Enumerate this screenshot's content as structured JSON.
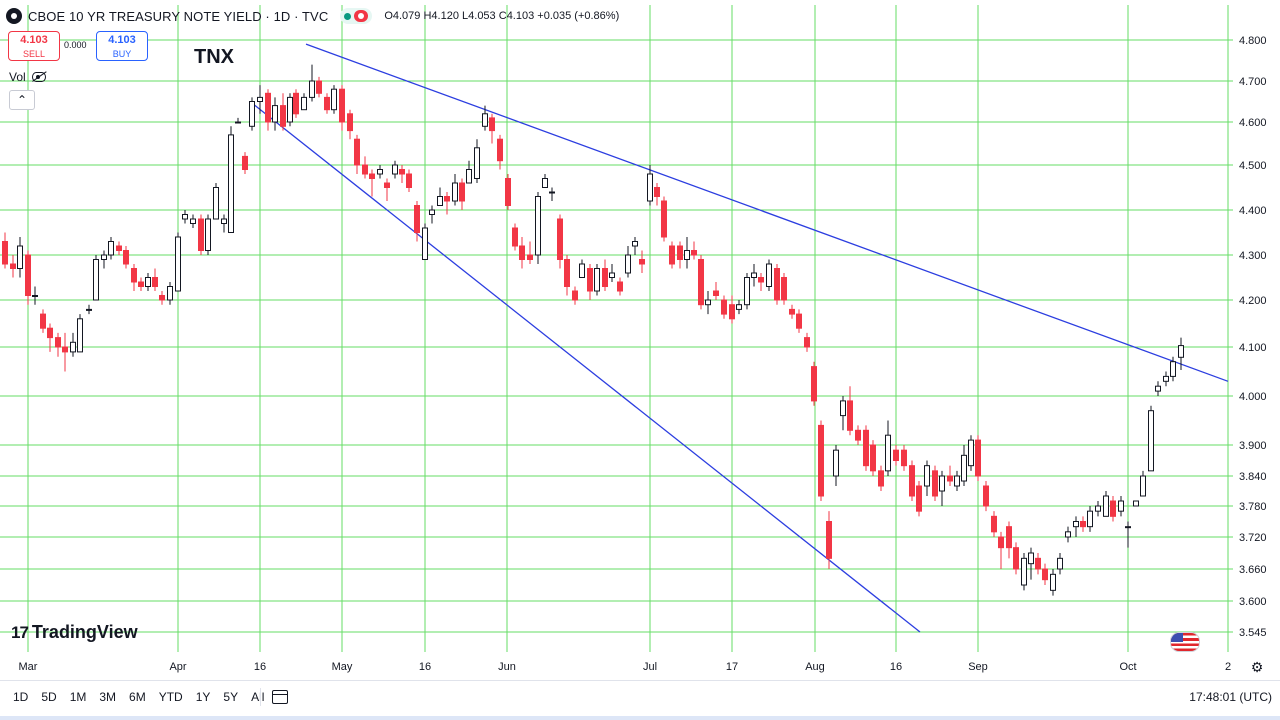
{
  "header": {
    "title": "CBOE 10 YR TREASURY NOTE YIELD · 1D · TVC",
    "ohlc": {
      "o_label": "O",
      "o": "4.079",
      "h_label": "H",
      "h": "4.120",
      "l_label": "L",
      "l": "4.053",
      "c_label": "C",
      "c": "4.103",
      "change": "+0.035 (+0.86%)"
    }
  },
  "trade": {
    "sell_price": "4.103",
    "sell_label": "SELL",
    "spread": "0.000",
    "buy_price": "4.103",
    "buy_label": "BUY"
  },
  "symbol_label": "TNX",
  "vol_label": "Vol",
  "watermark": "TradingView",
  "timeframes": [
    "1D",
    "5D",
    "1M",
    "3M",
    "6M",
    "YTD",
    "1Y",
    "5Y",
    "All"
  ],
  "clock": "17:48:01 (UTC)",
  "colors": {
    "up": "#131722",
    "down": "#f23645",
    "grid": "#66dd66",
    "trendline": "#2c3ee0",
    "sell": "#f23645",
    "buy": "#2962ff"
  },
  "chart_data": {
    "type": "candlestick",
    "y_ticks": [
      "4.800",
      "4.700",
      "4.600",
      "4.500",
      "4.400",
      "4.300",
      "4.200",
      "4.100",
      "4.000",
      "3.900",
      "3.840",
      "3.780",
      "3.720",
      "3.660",
      "3.600",
      "3.545"
    ],
    "x_ticks": [
      "Mar",
      "Apr",
      "16",
      "May",
      "16",
      "Jun",
      "Jul",
      "17",
      "Aug",
      "16",
      "Sep",
      "Oct",
      "2"
    ],
    "last_ohlc": {
      "open": 4.079,
      "high": 4.12,
      "low": 4.053,
      "close": 4.103
    },
    "trendlines": [
      {
        "name": "upper",
        "from": [
          306,
          4.79
        ],
        "to": [
          1228,
          4.03
        ]
      },
      {
        "name": "lower",
        "from": [
          250,
          4.65
        ],
        "to": [
          920,
          3.545
        ]
      }
    ],
    "candles": [
      [
        5,
        4.33,
        4.35,
        4.27,
        4.28
      ],
      [
        13,
        4.28,
        4.3,
        4.25,
        4.27
      ],
      [
        20,
        4.27,
        4.34,
        4.25,
        4.32
      ],
      [
        28,
        4.3,
        4.31,
        4.19,
        4.21
      ],
      [
        35,
        4.21,
        4.23,
        4.19,
        4.21
      ],
      [
        43,
        4.17,
        4.18,
        4.13,
        4.14
      ],
      [
        50,
        4.14,
        4.15,
        4.09,
        4.12
      ],
      [
        58,
        4.12,
        4.13,
        4.08,
        4.1
      ],
      [
        65,
        4.1,
        4.13,
        4.05,
        4.09
      ],
      [
        73,
        4.09,
        4.13,
        4.08,
        4.11
      ],
      [
        80,
        4.09,
        4.17,
        4.09,
        4.16
      ],
      [
        89,
        4.18,
        4.19,
        4.17,
        4.18
      ],
      [
        96,
        4.2,
        4.3,
        4.2,
        4.29
      ],
      [
        104,
        4.29,
        4.31,
        4.27,
        4.3
      ],
      [
        111,
        4.3,
        4.34,
        4.29,
        4.33
      ],
      [
        119,
        4.32,
        4.33,
        4.3,
        4.31
      ],
      [
        126,
        4.31,
        4.32,
        4.27,
        4.28
      ],
      [
        134,
        4.27,
        4.28,
        4.22,
        4.24
      ],
      [
        141,
        4.24,
        4.25,
        4.22,
        4.23
      ],
      [
        148,
        4.23,
        4.26,
        4.22,
        4.25
      ],
      [
        155,
        4.25,
        4.27,
        4.22,
        4.23
      ],
      [
        162,
        4.21,
        4.22,
        4.19,
        4.2
      ],
      [
        170,
        4.2,
        4.24,
        4.19,
        4.23
      ],
      [
        178,
        4.22,
        4.35,
        4.22,
        4.34
      ],
      [
        185,
        4.38,
        4.4,
        4.37,
        4.39
      ],
      [
        193,
        4.37,
        4.39,
        4.36,
        4.38
      ],
      [
        201,
        4.38,
        4.39,
        4.3,
        4.31
      ],
      [
        208,
        4.31,
        4.39,
        4.3,
        4.38
      ],
      [
        216,
        4.38,
        4.46,
        4.38,
        4.45
      ],
      [
        224,
        4.37,
        4.39,
        4.35,
        4.38
      ],
      [
        231,
        4.35,
        4.59,
        4.35,
        4.57
      ],
      [
        238,
        4.6,
        4.61,
        4.6,
        4.6
      ],
      [
        245,
        4.52,
        4.53,
        4.48,
        4.49
      ],
      [
        252,
        4.59,
        4.66,
        4.58,
        4.65
      ],
      [
        260,
        4.65,
        4.69,
        4.62,
        4.66
      ],
      [
        268,
        4.67,
        4.68,
        4.58,
        4.6
      ],
      [
        275,
        4.6,
        4.66,
        4.58,
        4.64
      ],
      [
        283,
        4.64,
        4.67,
        4.58,
        4.59
      ],
      [
        290,
        4.6,
        4.67,
        4.59,
        4.66
      ],
      [
        296,
        4.67,
        4.68,
        4.61,
        4.62
      ],
      [
        304,
        4.63,
        4.67,
        4.63,
        4.66
      ],
      [
        312,
        4.66,
        4.74,
        4.65,
        4.7
      ],
      [
        319,
        4.7,
        4.71,
        4.66,
        4.67
      ],
      [
        327,
        4.66,
        4.67,
        4.62,
        4.63
      ],
      [
        334,
        4.63,
        4.69,
        4.62,
        4.68
      ],
      [
        342,
        4.68,
        4.69,
        4.58,
        4.6
      ],
      [
        350,
        4.62,
        4.63,
        4.56,
        4.58
      ],
      [
        357,
        4.56,
        4.57,
        4.48,
        4.5
      ],
      [
        365,
        4.5,
        4.52,
        4.47,
        4.48
      ],
      [
        372,
        4.48,
        4.49,
        4.43,
        4.47
      ],
      [
        380,
        4.48,
        4.5,
        4.47,
        4.49
      ],
      [
        387,
        4.46,
        4.47,
        4.42,
        4.45
      ],
      [
        395,
        4.48,
        4.51,
        4.47,
        4.5
      ],
      [
        402,
        4.49,
        4.5,
        4.46,
        4.48
      ],
      [
        409,
        4.48,
        4.49,
        4.44,
        4.45
      ],
      [
        417,
        4.41,
        4.42,
        4.33,
        4.35
      ],
      [
        425,
        4.29,
        4.37,
        4.29,
        4.36
      ],
      [
        432,
        4.39,
        4.41,
        4.37,
        4.4
      ],
      [
        440,
        4.41,
        4.45,
        4.41,
        4.43
      ],
      [
        447,
        4.43,
        4.44,
        4.39,
        4.42
      ],
      [
        455,
        4.42,
        4.48,
        4.41,
        4.46
      ],
      [
        462,
        4.46,
        4.47,
        4.4,
        4.42
      ],
      [
        469,
        4.46,
        4.51,
        4.46,
        4.49
      ],
      [
        477,
        4.47,
        4.56,
        4.46,
        4.54
      ],
      [
        485,
        4.59,
        4.64,
        4.58,
        4.62
      ],
      [
        492,
        4.61,
        4.62,
        4.55,
        4.58
      ],
      [
        500,
        4.56,
        4.57,
        4.49,
        4.51
      ],
      [
        508,
        4.47,
        4.48,
        4.4,
        4.41
      ],
      [
        515,
        4.36,
        4.37,
        4.31,
        4.32
      ],
      [
        522,
        4.32,
        4.34,
        4.27,
        4.29
      ],
      [
        530,
        4.3,
        4.33,
        4.28,
        4.29
      ],
      [
        538,
        4.3,
        4.44,
        4.28,
        4.43
      ],
      [
        545,
        4.45,
        4.48,
        4.45,
        4.47
      ],
      [
        552,
        4.44,
        4.45,
        4.42,
        4.44
      ],
      [
        560,
        4.38,
        4.39,
        4.27,
        4.29
      ],
      [
        567,
        4.29,
        4.3,
        4.21,
        4.23
      ],
      [
        575,
        4.22,
        4.23,
        4.19,
        4.2
      ],
      [
        582,
        4.25,
        4.29,
        4.25,
        4.28
      ],
      [
        590,
        4.27,
        4.28,
        4.2,
        4.22
      ],
      [
        597,
        4.22,
        4.28,
        4.21,
        4.27
      ],
      [
        605,
        4.27,
        4.29,
        4.22,
        4.23
      ],
      [
        612,
        4.25,
        4.28,
        4.24,
        4.26
      ],
      [
        620,
        4.24,
        4.25,
        4.21,
        4.22
      ],
      [
        628,
        4.26,
        4.32,
        4.25,
        4.3
      ],
      [
        635,
        4.32,
        4.34,
        4.3,
        4.33
      ],
      [
        642,
        4.29,
        4.31,
        4.26,
        4.28
      ],
      [
        650,
        4.42,
        4.5,
        4.41,
        4.48
      ],
      [
        657,
        4.45,
        4.46,
        4.41,
        4.43
      ],
      [
        664,
        4.42,
        4.43,
        4.33,
        4.34
      ],
      [
        672,
        4.32,
        4.33,
        4.27,
        4.28
      ],
      [
        680,
        4.32,
        4.33,
        4.27,
        4.29
      ],
      [
        687,
        4.29,
        4.34,
        4.27,
        4.31
      ],
      [
        694,
        4.31,
        4.33,
        4.29,
        4.3
      ],
      [
        701,
        4.29,
        4.3,
        4.18,
        4.19
      ],
      [
        708,
        4.19,
        4.22,
        4.17,
        4.2
      ],
      [
        716,
        4.22,
        4.24,
        4.2,
        4.21
      ],
      [
        724,
        4.2,
        4.21,
        4.16,
        4.17
      ],
      [
        732,
        4.19,
        4.21,
        4.15,
        4.16
      ],
      [
        739,
        4.18,
        4.2,
        4.17,
        4.19
      ],
      [
        747,
        4.19,
        4.26,
        4.18,
        4.25
      ],
      [
        754,
        4.25,
        4.28,
        4.23,
        4.26
      ],
      [
        761,
        4.25,
        4.26,
        4.22,
        4.24
      ],
      [
        769,
        4.23,
        4.29,
        4.22,
        4.28
      ],
      [
        777,
        4.27,
        4.28,
        4.19,
        4.2
      ],
      [
        784,
        4.25,
        4.26,
        4.19,
        4.2
      ],
      [
        792,
        4.18,
        4.19,
        4.16,
        4.17
      ],
      [
        799,
        4.17,
        4.18,
        4.13,
        4.14
      ],
      [
        807,
        4.12,
        4.13,
        4.09,
        4.1
      ],
      [
        814,
        4.06,
        4.07,
        3.98,
        3.99
      ],
      [
        821,
        3.94,
        3.95,
        3.79,
        3.8
      ],
      [
        829,
        3.75,
        3.77,
        3.66,
        3.68
      ],
      [
        836,
        3.84,
        3.9,
        3.82,
        3.89
      ],
      [
        843,
        3.96,
        4.0,
        3.93,
        3.99
      ],
      [
        850,
        3.99,
        4.02,
        3.92,
        3.93
      ],
      [
        858,
        3.93,
        3.94,
        3.9,
        3.91
      ],
      [
        866,
        3.93,
        3.94,
        3.85,
        3.86
      ],
      [
        873,
        3.9,
        3.91,
        3.84,
        3.85
      ],
      [
        881,
        3.85,
        3.86,
        3.81,
        3.82
      ],
      [
        888,
        3.85,
        3.95,
        3.84,
        3.92
      ],
      [
        896,
        3.89,
        3.9,
        3.86,
        3.87
      ],
      [
        904,
        3.89,
        3.9,
        3.85,
        3.86
      ],
      [
        912,
        3.86,
        3.87,
        3.79,
        3.8
      ],
      [
        919,
        3.82,
        3.83,
        3.76,
        3.77
      ],
      [
        927,
        3.82,
        3.87,
        3.8,
        3.86
      ],
      [
        935,
        3.85,
        3.86,
        3.79,
        3.8
      ],
      [
        942,
        3.81,
        3.85,
        3.78,
        3.84
      ],
      [
        950,
        3.84,
        3.86,
        3.82,
        3.83
      ],
      [
        957,
        3.82,
        3.85,
        3.81,
        3.84
      ],
      [
        964,
        3.83,
        3.9,
        3.82,
        3.88
      ],
      [
        971,
        3.86,
        3.92,
        3.85,
        3.91
      ],
      [
        978,
        3.91,
        3.92,
        3.83,
        3.84
      ],
      [
        986,
        3.82,
        3.83,
        3.77,
        3.78
      ],
      [
        994,
        3.76,
        3.77,
        3.72,
        3.73
      ],
      [
        1001,
        3.72,
        3.73,
        3.66,
        3.7
      ],
      [
        1009,
        3.74,
        3.75,
        3.68,
        3.7
      ],
      [
        1016,
        3.7,
        3.71,
        3.65,
        3.66
      ],
      [
        1024,
        3.63,
        3.69,
        3.62,
        3.68
      ],
      [
        1031,
        3.67,
        3.7,
        3.64,
        3.69
      ],
      [
        1038,
        3.68,
        3.69,
        3.65,
        3.66
      ],
      [
        1045,
        3.66,
        3.67,
        3.63,
        3.64
      ],
      [
        1053,
        3.62,
        3.66,
        3.61,
        3.65
      ],
      [
        1060,
        3.66,
        3.69,
        3.65,
        3.68
      ],
      [
        1068,
        3.72,
        3.74,
        3.71,
        3.73
      ],
      [
        1076,
        3.74,
        3.76,
        3.72,
        3.75
      ],
      [
        1083,
        3.75,
        3.76,
        3.73,
        3.74
      ],
      [
        1090,
        3.74,
        3.78,
        3.73,
        3.77
      ],
      [
        1098,
        3.77,
        3.79,
        3.76,
        3.78
      ],
      [
        1106,
        3.76,
        3.81,
        3.76,
        3.8
      ],
      [
        1113,
        3.79,
        3.8,
        3.75,
        3.76
      ],
      [
        1121,
        3.77,
        3.8,
        3.76,
        3.79
      ],
      [
        1128,
        3.74,
        3.75,
        3.7,
        3.74
      ],
      [
        1136,
        3.78,
        3.79,
        3.78,
        3.79
      ],
      [
        1143,
        3.8,
        3.85,
        3.8,
        3.84
      ],
      [
        1151,
        3.85,
        3.98,
        3.85,
        3.97
      ],
      [
        1158,
        4.01,
        4.03,
        4.0,
        4.02
      ],
      [
        1166,
        4.03,
        4.05,
        4.02,
        4.04
      ],
      [
        1173,
        4.04,
        4.08,
        4.03,
        4.07
      ],
      [
        1181,
        4.079,
        4.12,
        4.053,
        4.103
      ]
    ]
  }
}
